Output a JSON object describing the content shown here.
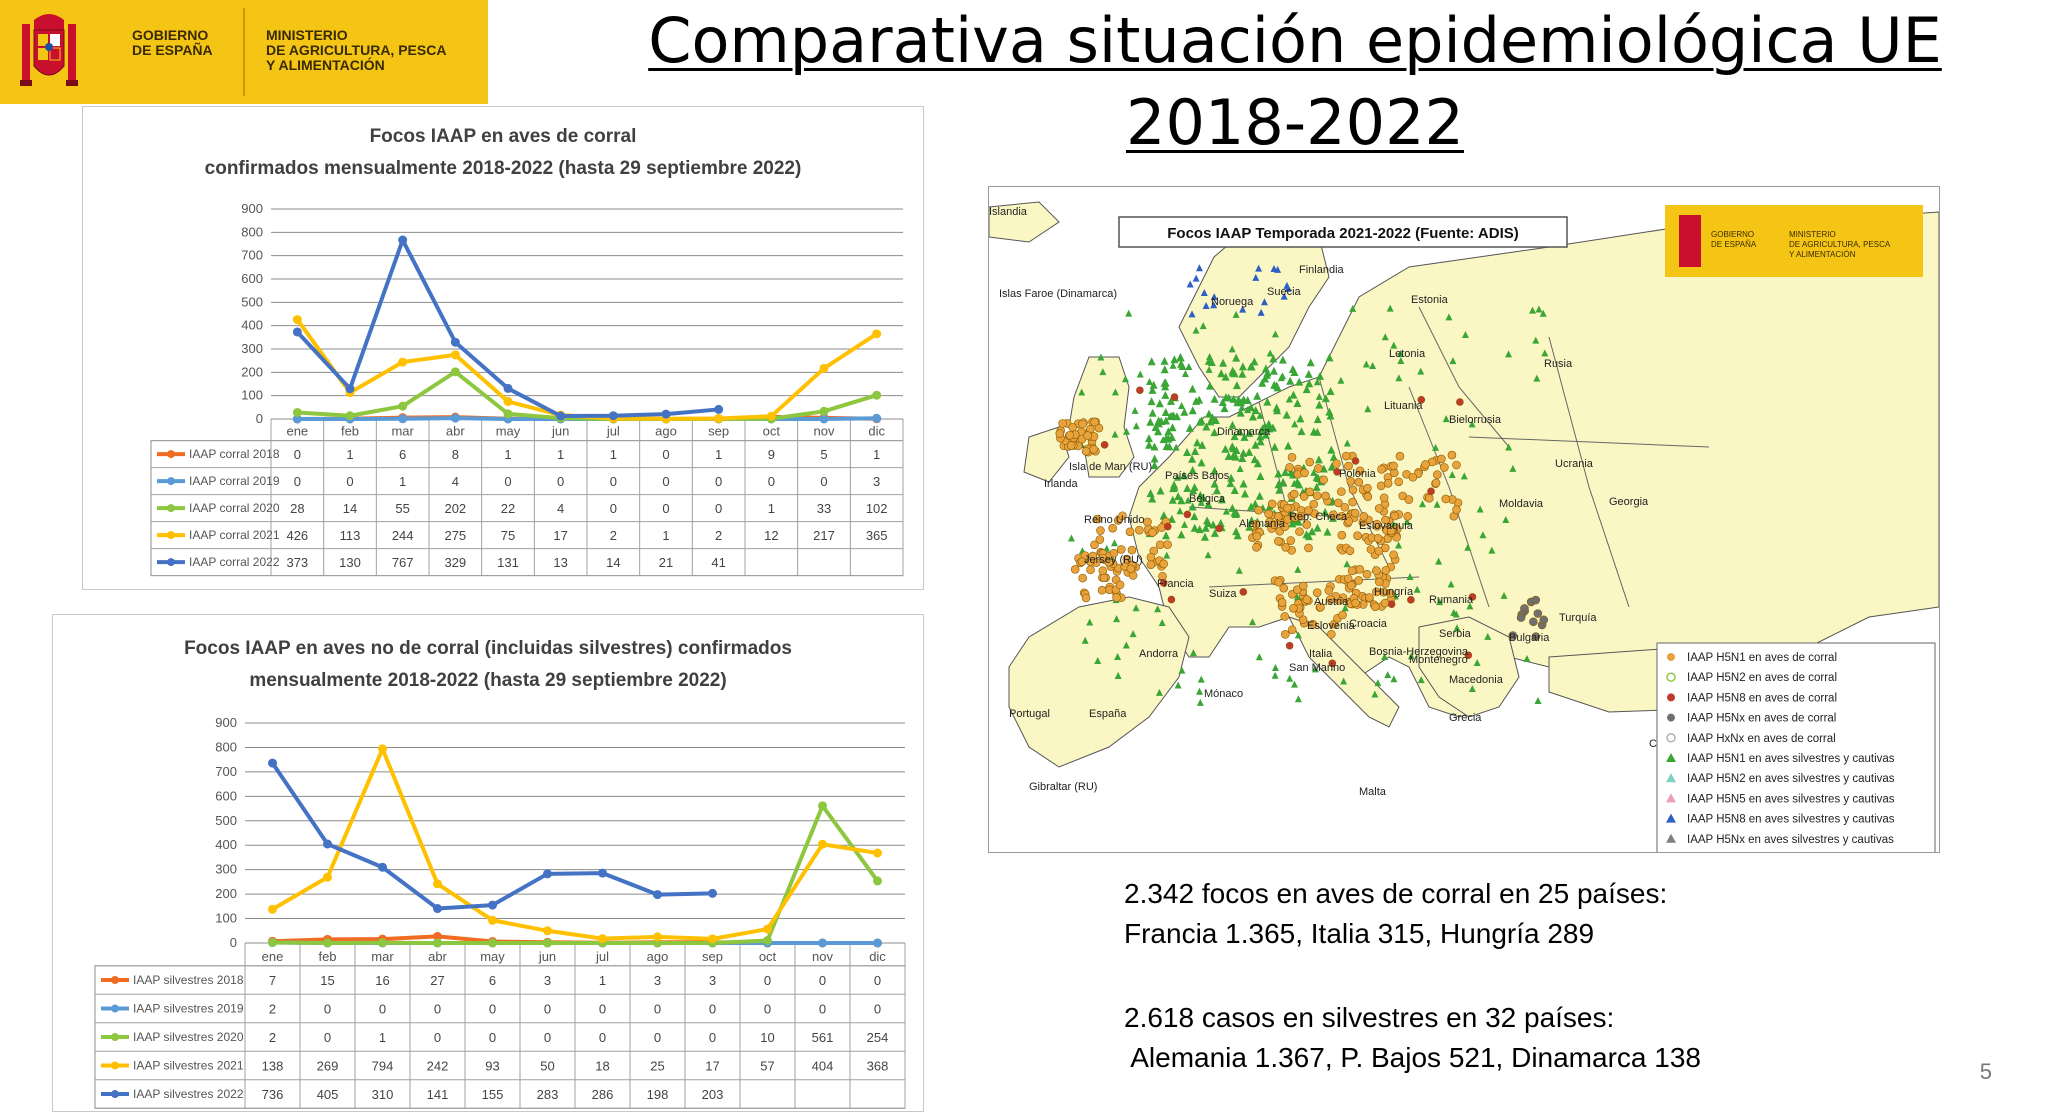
{
  "logo": {
    "gov_line1": "GOBIERNO",
    "gov_line2": "DE ESPAÑA",
    "min_line1": "MINISTERIO",
    "min_line2": "DE AGRICULTURA, PESCA",
    "min_line3": "Y ALIMENTACIÓN",
    "bg_color": "#f4c514"
  },
  "title": {
    "line1": "Comparativa situación epidemiológica UE",
    "line2": "2018-2022"
  },
  "charts": [
    {
      "title_line1": "Focos IAAP en aves de corral",
      "title_line2": "confirmados mensualmente 2018-2022 (hasta 29 septiembre 2022)",
      "chart_data": {
        "type": "line",
        "categories": [
          "ene",
          "feb",
          "mar",
          "abr",
          "may",
          "jun",
          "jul",
          "ago",
          "sep",
          "oct",
          "nov",
          "dic"
        ],
        "y_ticks": [
          "0",
          "100",
          "200",
          "300",
          "400",
          "500",
          "600",
          "700",
          "800",
          "900"
        ],
        "ylim": [
          0,
          900
        ],
        "grid": true,
        "series": [
          {
            "name": "IAAP corral 2018",
            "color": "#f26b22",
            "values": [
              0,
              1,
              6,
              8,
              1,
              1,
              1,
              0,
              1,
              9,
              5,
              1
            ],
            "cells": [
              "0",
              "1",
              "6",
              "8",
              "1",
              "1",
              "1",
              "0",
              "1",
              "9",
              "5",
              "1"
            ]
          },
          {
            "name": "IAAP corral 2019",
            "color": "#5b9bd5",
            "values": [
              0,
              0,
              1,
              4,
              0,
              0,
              0,
              0,
              0,
              0,
              0,
              3
            ],
            "cells": [
              "0",
              "0",
              "1",
              "4",
              "0",
              "0",
              "0",
              "0",
              "0",
              "0",
              "0",
              "3"
            ]
          },
          {
            "name": "IAAP corral 2020",
            "color": "#8dc63f",
            "values": [
              28,
              14,
              55,
              202,
              22,
              4,
              0,
              0,
              0,
              1,
              33,
              102
            ],
            "cells": [
              "28",
              "14",
              "55",
              "202",
              "22",
              "4",
              "0",
              "0",
              "0",
              "1",
              "33",
              "102"
            ]
          },
          {
            "name": "IAAP corral 2021",
            "color": "#ffc000",
            "values": [
              426,
              113,
              244,
              275,
              75,
              17,
              2,
              1,
              2,
              12,
              217,
              365
            ],
            "cells": [
              "426",
              "113",
              "244",
              "275",
              "75",
              "17",
              "2",
              "1",
              "2",
              "12",
              "217",
              "365"
            ]
          },
          {
            "name": "IAAP corral 2022",
            "color": "#4472c4",
            "values": [
              373,
              130,
              767,
              329,
              131,
              13,
              14,
              21,
              41,
              null,
              null,
              null
            ],
            "cells": [
              "373",
              "130",
              "767",
              "329",
              "131",
              "13",
              "14",
              "21",
              "41",
              "",
              "",
              ""
            ]
          }
        ]
      }
    },
    {
      "title_line1": "Focos IAAP en aves no de corral (incluidas silvestres) confirmados",
      "title_line2": "mensualmente 2018-2022 (hasta 29 septiembre 2022)",
      "chart_data": {
        "type": "line",
        "categories": [
          "ene",
          "feb",
          "mar",
          "abr",
          "may",
          "jun",
          "jul",
          "ago",
          "sep",
          "oct",
          "nov",
          "dic"
        ],
        "y_ticks": [
          "0",
          "100",
          "200",
          "300",
          "400",
          "500",
          "600",
          "700",
          "800",
          "900"
        ],
        "ylim": [
          0,
          900
        ],
        "grid": true,
        "series": [
          {
            "name": "IAAP silvestres 2018",
            "color": "#f26b22",
            "values": [
              7,
              15,
              16,
              27,
              6,
              3,
              1,
              3,
              3,
              0,
              0,
              0
            ],
            "cells": [
              "7",
              "15",
              "16",
              "27",
              "6",
              "3",
              "1",
              "3",
              "3",
              "0",
              "0",
              "0"
            ]
          },
          {
            "name": "IAAP silvestres 2019",
            "color": "#5b9bd5",
            "values": [
              2,
              0,
              0,
              0,
              0,
              0,
              0,
              0,
              0,
              0,
              0,
              0
            ],
            "cells": [
              "2",
              "0",
              "0",
              "0",
              "0",
              "0",
              "0",
              "0",
              "0",
              "0",
              "0",
              "0"
            ]
          },
          {
            "name": "IAAP silvestres 2020",
            "color": "#8dc63f",
            "values": [
              2,
              0,
              1,
              0,
              0,
              0,
              0,
              0,
              0,
              10,
              561,
              254
            ],
            "cells": [
              "2",
              "0",
              "1",
              "0",
              "0",
              "0",
              "0",
              "0",
              "0",
              "10",
              "561",
              "254"
            ]
          },
          {
            "name": "IAAP silvestres 2021",
            "color": "#ffc000",
            "values": [
              138,
              269,
              794,
              242,
              93,
              50,
              18,
              25,
              17,
              57,
              404,
              368
            ],
            "cells": [
              "138",
              "269",
              "794",
              "242",
              "93",
              "50",
              "18",
              "25",
              "17",
              "57",
              "404",
              "368"
            ]
          },
          {
            "name": "IAAP silvestres 2022",
            "color": "#4472c4",
            "values": [
              736,
              405,
              310,
              141,
              155,
              283,
              286,
              198,
              203,
              null,
              null,
              null
            ],
            "cells": [
              "736",
              "405",
              "310",
              "141",
              "155",
              "283",
              "286",
              "198",
              "203",
              "",
              "",
              ""
            ]
          }
        ]
      }
    }
  ],
  "map": {
    "title": "Focos IAAP Temporada 2021-2022 (Fuente: ADIS)",
    "land_color": "#fbf7c4",
    "sea_color": "#ffffff",
    "labels": [
      {
        "text": "Islandia"
      },
      {
        "text": "Islas Faroe (Dinamarca)"
      },
      {
        "text": "Noruega"
      },
      {
        "text": "Suecia"
      },
      {
        "text": "Finlandia"
      },
      {
        "text": "Estonia"
      },
      {
        "text": "Rusia"
      },
      {
        "text": "Letonia"
      },
      {
        "text": "Lituania"
      },
      {
        "text": "Bielorrusia"
      },
      {
        "text": "Dinamarca"
      },
      {
        "text": "Irlanda"
      },
      {
        "text": "Reino Unido"
      },
      {
        "text": "Isla de Man (RU)"
      },
      {
        "text": "Países Bajos"
      },
      {
        "text": "Alemania"
      },
      {
        "text": "Polonia"
      },
      {
        "text": "Ucrania"
      },
      {
        "text": "Jersey (RU)"
      },
      {
        "text": "Francia"
      },
      {
        "text": "Suiza"
      },
      {
        "text": "Austria"
      },
      {
        "text": "Eslovaquia"
      },
      {
        "text": "Hungría"
      },
      {
        "text": "Rumania"
      },
      {
        "text": "Moldavia"
      },
      {
        "text": "Georgia"
      },
      {
        "text": "Turquía"
      },
      {
        "text": "Bulgaria"
      },
      {
        "text": "Serbia"
      },
      {
        "text": "Montenegro"
      },
      {
        "text": "Macedonia"
      },
      {
        "text": "Grecia"
      },
      {
        "text": "Italia"
      },
      {
        "text": "San Marino"
      },
      {
        "text": "Mónaco"
      },
      {
        "text": "Andorra"
      },
      {
        "text": "España"
      },
      {
        "text": "Portugal"
      },
      {
        "text": "Gibraltar (RU)"
      },
      {
        "text": "Malta"
      },
      {
        "text": "Chipre"
      },
      {
        "text": "Croacia"
      },
      {
        "text": "Eslovenia"
      },
      {
        "text": "Bosnia-Herzegovina"
      },
      {
        "text": "Bélgica"
      },
      {
        "text": "Rep. Checa"
      }
    ],
    "legend": [
      {
        "label": "IAAP H5N1 en aves de corral",
        "color": "#e8a33c",
        "shape": "circle"
      },
      {
        "label": "IAAP H5N2 en aves de corral",
        "color": "#8dc63f",
        "shape": "circle-open"
      },
      {
        "label": "IAAP H5N8 en aves de corral",
        "color": "#c0392b",
        "shape": "circle"
      },
      {
        "label": "IAAP H5Nx en aves de corral",
        "color": "#707070",
        "shape": "circle"
      },
      {
        "label": "IAAP HxNx en aves de corral",
        "color": "#b0b0b0",
        "shape": "circle-open"
      },
      {
        "label": "IAAP H5N1 en aves silvestres y cautivas",
        "color": "#3aa635",
        "shape": "triangle"
      },
      {
        "label": "IAAP H5N2 en aves silvestres y cautivas",
        "color": "#7fd1c0",
        "shape": "triangle"
      },
      {
        "label": "IAAP H5N5 en aves silvestres y cautivas",
        "color": "#e9a0b0",
        "shape": "triangle"
      },
      {
        "label": "IAAP H5N8 en aves silvestres y cautivas",
        "color": "#2f5fc4",
        "shape": "triangle"
      },
      {
        "label": "IAAP H5Nx en aves silvestres y cautivas",
        "color": "#808080",
        "shape": "triangle"
      }
    ]
  },
  "stats": {
    "line1": "2.342 focos en aves de corral en 25 países:",
    "line2": "Francia 1.365, Italia 315, Hungría 289",
    "line3": "2.618 casos en silvestres en 32 países:",
    "line4": " Alemania 1.367, P. Bajos 521, Dinamarca 138"
  },
  "page_number": "5"
}
